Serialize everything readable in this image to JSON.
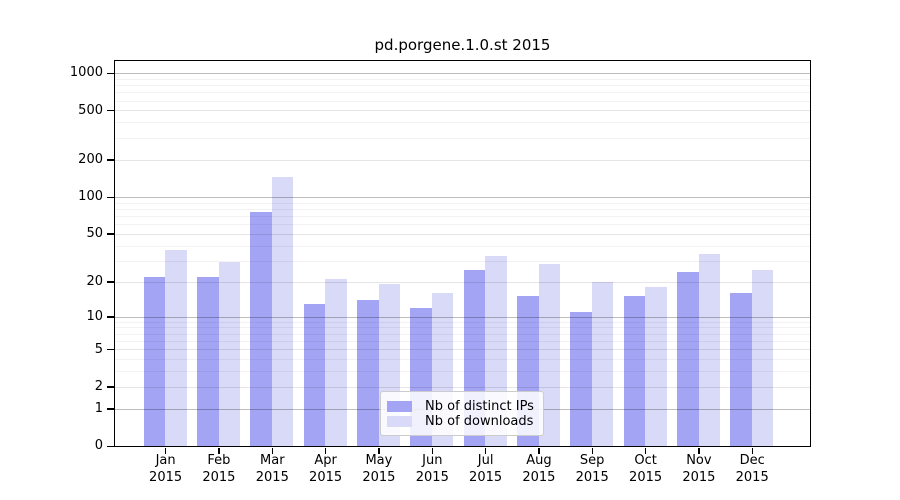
{
  "chart_data": {
    "type": "bar",
    "title": "pd.porgene.1.0.st 2015",
    "year": "2015",
    "categories": [
      "Jan",
      "Feb",
      "Mar",
      "Apr",
      "May",
      "Jun",
      "Jul",
      "Aug",
      "Sep",
      "Oct",
      "Nov",
      "Dec"
    ],
    "series": [
      {
        "name": "Nb of distinct IPs",
        "color": "#a4a4f4",
        "values": [
          22,
          22,
          75,
          13,
          14,
          12,
          25,
          15,
          11,
          15,
          24,
          16
        ]
      },
      {
        "name": "Nb of downloads",
        "color": "#d9d9f8",
        "values": [
          37,
          29,
          145,
          21,
          19,
          16,
          33,
          28,
          20,
          18,
          34,
          25
        ]
      }
    ],
    "yticks": [
      0,
      1,
      2,
      5,
      10,
      20,
      50,
      100,
      200,
      500,
      1000
    ],
    "yscale": "log10(value+1)",
    "ylim": [
      0,
      1300
    ],
    "grid": "horizontal",
    "legend_position": "bottom-center-inside"
  }
}
